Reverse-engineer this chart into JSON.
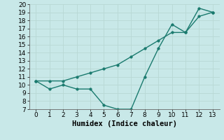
{
  "x": [
    0,
    1,
    2,
    3,
    4,
    5,
    6,
    7,
    8,
    9,
    10,
    11,
    12,
    13
  ],
  "line1": [
    10.5,
    10.5,
    10.5,
    11.0,
    11.5,
    12.0,
    12.5,
    13.5,
    14.5,
    15.5,
    16.5,
    16.5,
    18.5,
    19.0
  ],
  "line2": [
    10.5,
    9.5,
    10.0,
    9.5,
    9.5,
    7.5,
    7.0,
    7.0,
    11.0,
    14.5,
    17.5,
    16.5,
    19.5,
    19.0
  ],
  "color": "#1a7a6e",
  "bg_color": "#c8e8e8",
  "grid_color": "#b8d8d4",
  "xlabel": "Humidex (Indice chaleur)",
  "xlim": [
    -0.5,
    13.5
  ],
  "ylim": [
    7,
    20
  ],
  "yticks": [
    7,
    8,
    9,
    10,
    11,
    12,
    13,
    14,
    15,
    16,
    17,
    18,
    19,
    20
  ],
  "xticks": [
    0,
    1,
    2,
    3,
    4,
    5,
    6,
    7,
    8,
    9,
    10,
    11,
    12,
    13
  ],
  "markersize": 2.5,
  "linewidth": 1.0,
  "xlabel_fontsize": 7.5,
  "tick_fontsize": 6.5
}
